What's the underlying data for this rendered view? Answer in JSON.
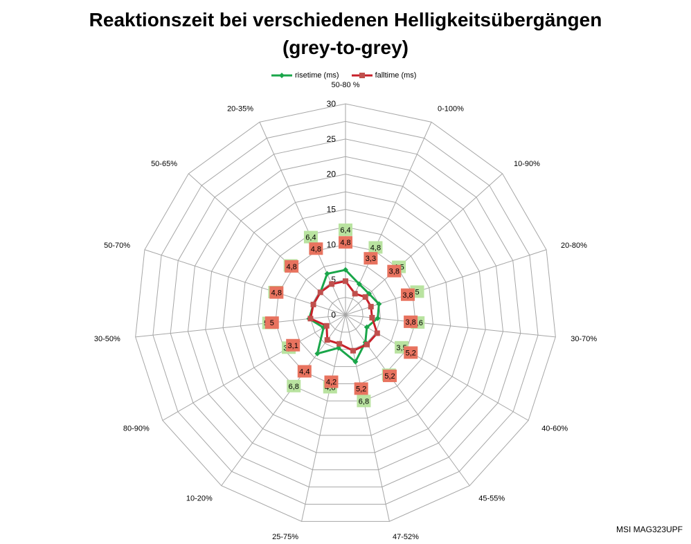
{
  "title_line1": "Reaktionszeit bei verschiedenen Helligkeitsübergängen",
  "title_line2": "(grey-to-grey)",
  "watermark": "MSI MAG323UPF",
  "colors": {
    "rise": "#1aa64a",
    "fall": "#c8202a",
    "grid": "#a6a6a6"
  },
  "chart_data": {
    "type": "radar",
    "categories": [
      "50-80 %",
      "0-100%",
      "10-90%",
      "20-80%",
      "30-70%",
      "40-60%",
      "45-55%",
      "47-52%",
      "25-75%",
      "10-20%",
      "80-90%",
      "30-50%",
      "50-70%",
      "50-65%",
      "20-35%"
    ],
    "rmax": 30,
    "ticks": [
      0,
      5,
      10,
      15,
      20,
      25,
      30
    ],
    "legend_position": "top",
    "series": [
      {
        "name": "risetime (ms)",
        "values": [
          6.4,
          4.8,
          4.5,
          5,
          4.6,
          3.5,
          4.8,
          6.8,
          4.8,
          6.8,
          3.6,
          5.2,
          4.8,
          4.8,
          6.4
        ],
        "labels": [
          "6,4",
          "4,8",
          "4,5",
          "5",
          "4,6",
          "3,5",
          "4,8",
          "6,8",
          "4,8",
          "6,8",
          "3,6",
          "5,2",
          "4,8",
          "4,8",
          "6,4"
        ]
      },
      {
        "name": "falltime (ms)",
        "values": [
          4.8,
          3.3,
          3.8,
          3.8,
          3.8,
          5.2,
          5.2,
          5.2,
          4.2,
          4.4,
          3.1,
          5.0,
          4.8,
          4.8,
          4.8
        ],
        "labels": [
          "4,8",
          "3,3",
          "3,8",
          "3,8",
          "3,8",
          "5,2",
          "5,2",
          "5,2",
          "4,2",
          "4,4",
          "3,1",
          "5",
          "4,8",
          "4,8",
          "4,8"
        ]
      }
    ]
  }
}
